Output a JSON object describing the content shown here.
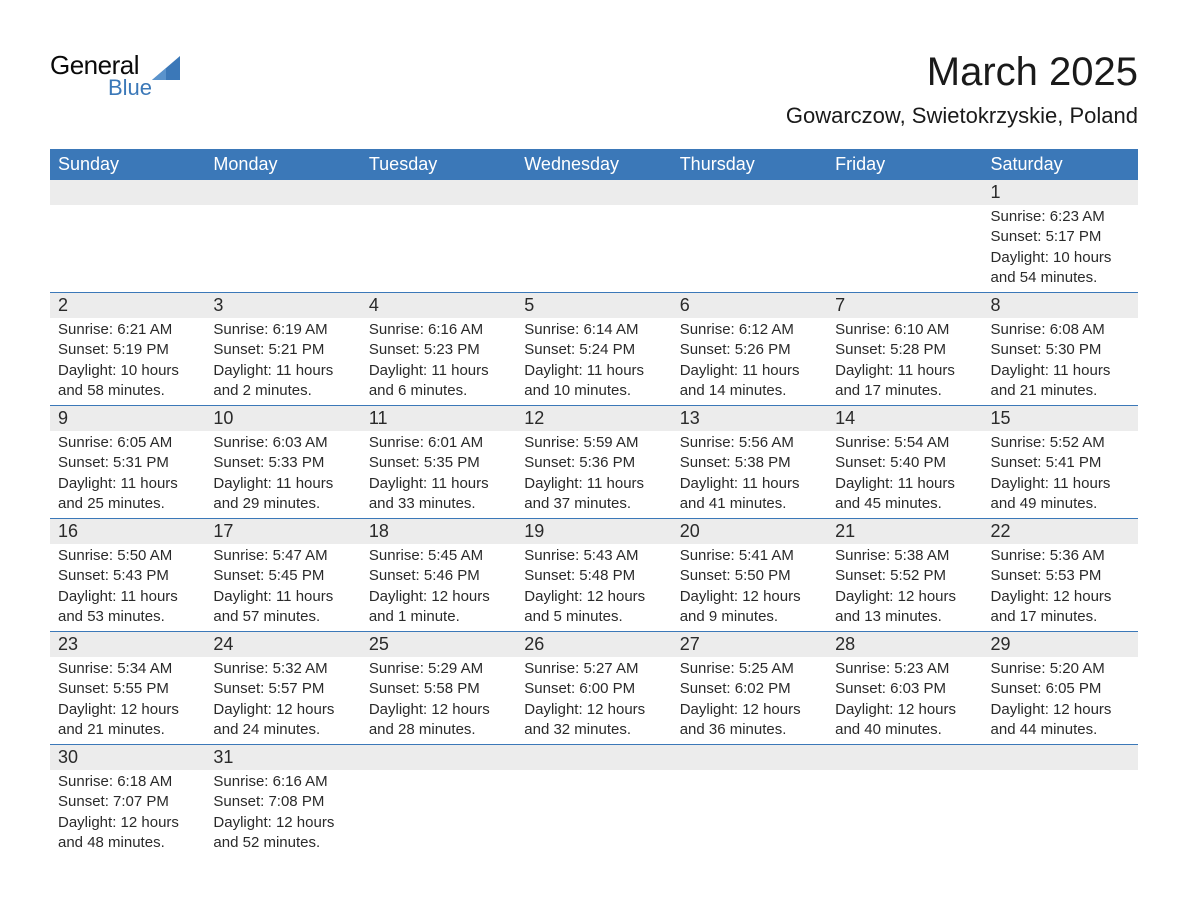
{
  "logo": {
    "text_general": "General",
    "text_blue": "Blue",
    "shape_color": "#3b78b8"
  },
  "title": "March 2025",
  "location": "Gowarczow, Swietokrzyskie, Poland",
  "theme": {
    "header_bg": "#3b78b8",
    "header_fg": "#ffffff",
    "daynum_bg": "#ececec",
    "text_color": "#2a2a2a",
    "row_divider": "#3b78b8",
    "page_bg": "#ffffff"
  },
  "layout": {
    "columns": 7,
    "rows": 6,
    "cell_font_size_pt": 11,
    "header_font_size_pt": 14,
    "title_font_size_pt": 30,
    "location_font_size_pt": 16
  },
  "day_headers": [
    "Sunday",
    "Monday",
    "Tuesday",
    "Wednesday",
    "Thursday",
    "Friday",
    "Saturday"
  ],
  "weeks": [
    [
      null,
      null,
      null,
      null,
      null,
      null,
      {
        "n": "1",
        "sunrise": "Sunrise: 6:23 AM",
        "sunset": "Sunset: 5:17 PM",
        "daylight": "Daylight: 10 hours and 54 minutes."
      }
    ],
    [
      {
        "n": "2",
        "sunrise": "Sunrise: 6:21 AM",
        "sunset": "Sunset: 5:19 PM",
        "daylight": "Daylight: 10 hours and 58 minutes."
      },
      {
        "n": "3",
        "sunrise": "Sunrise: 6:19 AM",
        "sunset": "Sunset: 5:21 PM",
        "daylight": "Daylight: 11 hours and 2 minutes."
      },
      {
        "n": "4",
        "sunrise": "Sunrise: 6:16 AM",
        "sunset": "Sunset: 5:23 PM",
        "daylight": "Daylight: 11 hours and 6 minutes."
      },
      {
        "n": "5",
        "sunrise": "Sunrise: 6:14 AM",
        "sunset": "Sunset: 5:24 PM",
        "daylight": "Daylight: 11 hours and 10 minutes."
      },
      {
        "n": "6",
        "sunrise": "Sunrise: 6:12 AM",
        "sunset": "Sunset: 5:26 PM",
        "daylight": "Daylight: 11 hours and 14 minutes."
      },
      {
        "n": "7",
        "sunrise": "Sunrise: 6:10 AM",
        "sunset": "Sunset: 5:28 PM",
        "daylight": "Daylight: 11 hours and 17 minutes."
      },
      {
        "n": "8",
        "sunrise": "Sunrise: 6:08 AM",
        "sunset": "Sunset: 5:30 PM",
        "daylight": "Daylight: 11 hours and 21 minutes."
      }
    ],
    [
      {
        "n": "9",
        "sunrise": "Sunrise: 6:05 AM",
        "sunset": "Sunset: 5:31 PM",
        "daylight": "Daylight: 11 hours and 25 minutes."
      },
      {
        "n": "10",
        "sunrise": "Sunrise: 6:03 AM",
        "sunset": "Sunset: 5:33 PM",
        "daylight": "Daylight: 11 hours and 29 minutes."
      },
      {
        "n": "11",
        "sunrise": "Sunrise: 6:01 AM",
        "sunset": "Sunset: 5:35 PM",
        "daylight": "Daylight: 11 hours and 33 minutes."
      },
      {
        "n": "12",
        "sunrise": "Sunrise: 5:59 AM",
        "sunset": "Sunset: 5:36 PM",
        "daylight": "Daylight: 11 hours and 37 minutes."
      },
      {
        "n": "13",
        "sunrise": "Sunrise: 5:56 AM",
        "sunset": "Sunset: 5:38 PM",
        "daylight": "Daylight: 11 hours and 41 minutes."
      },
      {
        "n": "14",
        "sunrise": "Sunrise: 5:54 AM",
        "sunset": "Sunset: 5:40 PM",
        "daylight": "Daylight: 11 hours and 45 minutes."
      },
      {
        "n": "15",
        "sunrise": "Sunrise: 5:52 AM",
        "sunset": "Sunset: 5:41 PM",
        "daylight": "Daylight: 11 hours and 49 minutes."
      }
    ],
    [
      {
        "n": "16",
        "sunrise": "Sunrise: 5:50 AM",
        "sunset": "Sunset: 5:43 PM",
        "daylight": "Daylight: 11 hours and 53 minutes."
      },
      {
        "n": "17",
        "sunrise": "Sunrise: 5:47 AM",
        "sunset": "Sunset: 5:45 PM",
        "daylight": "Daylight: 11 hours and 57 minutes."
      },
      {
        "n": "18",
        "sunrise": "Sunrise: 5:45 AM",
        "sunset": "Sunset: 5:46 PM",
        "daylight": "Daylight: 12 hours and 1 minute."
      },
      {
        "n": "19",
        "sunrise": "Sunrise: 5:43 AM",
        "sunset": "Sunset: 5:48 PM",
        "daylight": "Daylight: 12 hours and 5 minutes."
      },
      {
        "n": "20",
        "sunrise": "Sunrise: 5:41 AM",
        "sunset": "Sunset: 5:50 PM",
        "daylight": "Daylight: 12 hours and 9 minutes."
      },
      {
        "n": "21",
        "sunrise": "Sunrise: 5:38 AM",
        "sunset": "Sunset: 5:52 PM",
        "daylight": "Daylight: 12 hours and 13 minutes."
      },
      {
        "n": "22",
        "sunrise": "Sunrise: 5:36 AM",
        "sunset": "Sunset: 5:53 PM",
        "daylight": "Daylight: 12 hours and 17 minutes."
      }
    ],
    [
      {
        "n": "23",
        "sunrise": "Sunrise: 5:34 AM",
        "sunset": "Sunset: 5:55 PM",
        "daylight": "Daylight: 12 hours and 21 minutes."
      },
      {
        "n": "24",
        "sunrise": "Sunrise: 5:32 AM",
        "sunset": "Sunset: 5:57 PM",
        "daylight": "Daylight: 12 hours and 24 minutes."
      },
      {
        "n": "25",
        "sunrise": "Sunrise: 5:29 AM",
        "sunset": "Sunset: 5:58 PM",
        "daylight": "Daylight: 12 hours and 28 minutes."
      },
      {
        "n": "26",
        "sunrise": "Sunrise: 5:27 AM",
        "sunset": "Sunset: 6:00 PM",
        "daylight": "Daylight: 12 hours and 32 minutes."
      },
      {
        "n": "27",
        "sunrise": "Sunrise: 5:25 AM",
        "sunset": "Sunset: 6:02 PM",
        "daylight": "Daylight: 12 hours and 36 minutes."
      },
      {
        "n": "28",
        "sunrise": "Sunrise: 5:23 AM",
        "sunset": "Sunset: 6:03 PM",
        "daylight": "Daylight: 12 hours and 40 minutes."
      },
      {
        "n": "29",
        "sunrise": "Sunrise: 5:20 AM",
        "sunset": "Sunset: 6:05 PM",
        "daylight": "Daylight: 12 hours and 44 minutes."
      }
    ],
    [
      {
        "n": "30",
        "sunrise": "Sunrise: 6:18 AM",
        "sunset": "Sunset: 7:07 PM",
        "daylight": "Daylight: 12 hours and 48 minutes."
      },
      {
        "n": "31",
        "sunrise": "Sunrise: 6:16 AM",
        "sunset": "Sunset: 7:08 PM",
        "daylight": "Daylight: 12 hours and 52 minutes."
      },
      null,
      null,
      null,
      null,
      null
    ]
  ]
}
